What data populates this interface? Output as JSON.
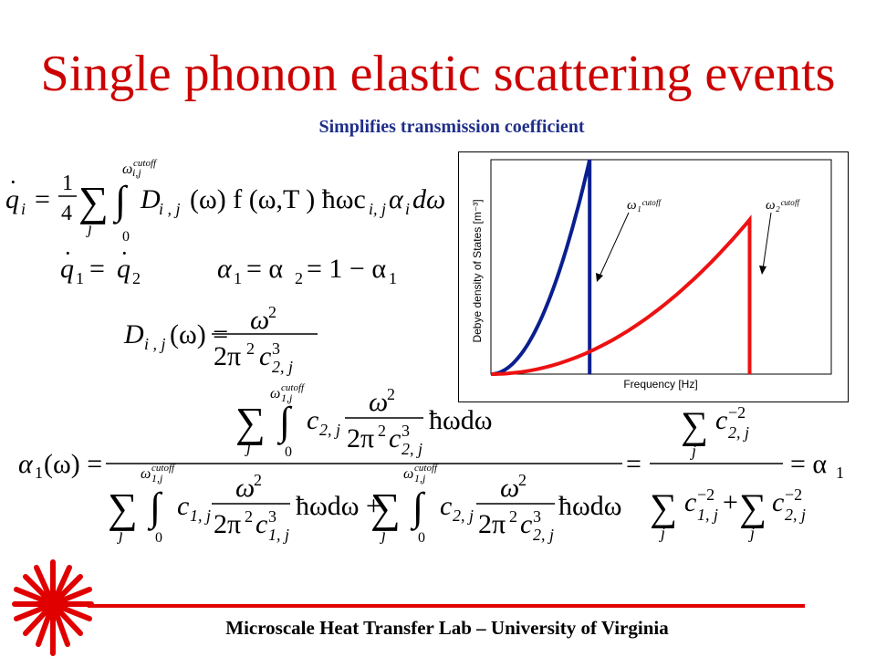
{
  "title": "Single phonon elastic scattering events",
  "subtitle": "Simplifies transmission coefficient",
  "footer": "Microscale Heat Transfer Lab – University of Virginia",
  "colors": {
    "title": "#cc0000",
    "subtitle": "#1f2f8a",
    "accent_red": "#e00000",
    "series_blue": "#0a1f8f",
    "series_red": "#ee1111"
  },
  "logo_icon": "red-sunburst-logo",
  "chart_data": {
    "type": "line",
    "xlabel": "Frequency [Hz]",
    "ylabel": "Debye density of States [m⁻³]",
    "annotations": [
      "ω₁ᶜᵘᵗᵒᶠᶠ",
      "ω₂ᶜᵘᵗᵒᶠᶠ"
    ],
    "xlim": [
      0,
      1
    ],
    "ylim": [
      0,
      1
    ],
    "grid": false,
    "series": [
      {
        "color": "#0a1f8f",
        "cutoff_x": 0.29,
        "peak_y": 1.0
      },
      {
        "color": "#ee1111",
        "cutoff_x": 0.76,
        "peak_y": 0.72
      }
    ]
  }
}
